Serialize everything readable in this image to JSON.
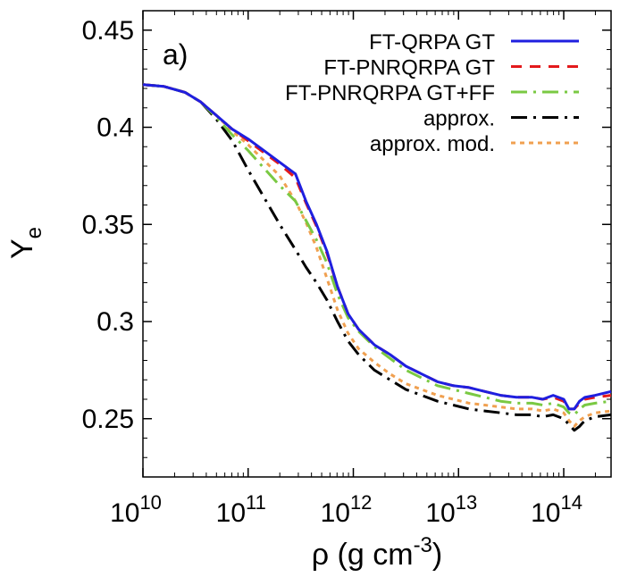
{
  "chart_data": {
    "type": "line",
    "panel_label": "a)",
    "xlabel": {
      "base": "ρ (g cm",
      "sup": "-3",
      "end": ")"
    },
    "ylabel": {
      "base": "Y",
      "sub": "e"
    },
    "xscale": "log",
    "xlim_log10": [
      10,
      14.45
    ],
    "ylim": [
      0.22,
      0.46
    ],
    "yticks": [
      "0.25",
      "0.3",
      "0.35",
      "0.4",
      "0.45"
    ],
    "xticks": [
      {
        "exp": 10,
        "base": "10",
        "sup": "10"
      },
      {
        "exp": 11,
        "base": "10",
        "sup": "11"
      },
      {
        "exp": 12,
        "base": "10",
        "sup": "12"
      },
      {
        "exp": 13,
        "base": "10",
        "sup": "13"
      },
      {
        "exp": 14,
        "base": "10",
        "sup": "14"
      }
    ],
    "legend_position": "top-right",
    "series": [
      {
        "name": "FT-QRPA GT",
        "color": "#1f1fdf",
        "dash": "solid",
        "x": [
          10.0,
          10.2,
          10.4,
          10.55,
          10.7,
          10.85,
          11.0,
          11.15,
          11.3,
          11.45,
          11.55,
          11.65,
          11.75,
          11.85,
          11.95,
          12.05,
          12.2,
          12.35,
          12.5,
          12.65,
          12.8,
          12.95,
          13.1,
          13.25,
          13.4,
          13.55,
          13.7,
          13.8,
          13.9,
          14.0,
          14.05,
          14.1,
          14.15,
          14.2,
          14.3,
          14.45
        ],
        "y": [
          0.422,
          0.421,
          0.418,
          0.413,
          0.406,
          0.399,
          0.394,
          0.388,
          0.382,
          0.376,
          0.362,
          0.35,
          0.336,
          0.318,
          0.304,
          0.296,
          0.288,
          0.283,
          0.277,
          0.273,
          0.269,
          0.267,
          0.266,
          0.264,
          0.262,
          0.261,
          0.261,
          0.26,
          0.262,
          0.26,
          0.255,
          0.255,
          0.259,
          0.261,
          0.262,
          0.264
        ]
      },
      {
        "name": "FT-PNRQRPA GT",
        "color": "#e31a1c",
        "dash": "12,9",
        "x": [
          10.0,
          10.2,
          10.4,
          10.55,
          10.7,
          10.85,
          11.0,
          11.15,
          11.3,
          11.45,
          11.55,
          11.65,
          11.75,
          11.85,
          11.95,
          12.05,
          12.2,
          12.35,
          12.5,
          12.65,
          12.8,
          12.95,
          13.1,
          13.25,
          13.4,
          13.55,
          13.7,
          13.8,
          13.9,
          14.0,
          14.05,
          14.1,
          14.15,
          14.2,
          14.3,
          14.45
        ],
        "y": [
          0.422,
          0.421,
          0.418,
          0.413,
          0.406,
          0.399,
          0.393,
          0.387,
          0.381,
          0.374,
          0.361,
          0.349,
          0.335,
          0.318,
          0.304,
          0.296,
          0.288,
          0.283,
          0.277,
          0.273,
          0.269,
          0.267,
          0.266,
          0.264,
          0.262,
          0.261,
          0.261,
          0.26,
          0.261,
          0.259,
          0.255,
          0.255,
          0.258,
          0.26,
          0.261,
          0.262
        ]
      },
      {
        "name": "FT-PNRQRPA GT+FF",
        "color": "#7ac943",
        "dash": "18,7,3,7",
        "x": [
          10.0,
          10.2,
          10.4,
          10.55,
          10.7,
          10.85,
          11.0,
          11.15,
          11.3,
          11.45,
          11.55,
          11.65,
          11.75,
          11.85,
          11.95,
          12.05,
          12.2,
          12.35,
          12.5,
          12.65,
          12.8,
          12.95,
          13.1,
          13.25,
          13.4,
          13.55,
          13.7,
          13.8,
          13.9,
          14.0,
          14.05,
          14.1,
          14.15,
          14.2,
          14.3,
          14.45
        ],
        "y": [
          0.422,
          0.421,
          0.418,
          0.413,
          0.405,
          0.396,
          0.388,
          0.379,
          0.37,
          0.362,
          0.352,
          0.342,
          0.33,
          0.314,
          0.302,
          0.295,
          0.287,
          0.281,
          0.275,
          0.271,
          0.267,
          0.265,
          0.263,
          0.261,
          0.259,
          0.258,
          0.258,
          0.257,
          0.258,
          0.256,
          0.253,
          0.252,
          0.255,
          0.257,
          0.258,
          0.259
        ]
      },
      {
        "name": "approx.",
        "color": "#000000",
        "dash": "18,7,3,7",
        "x": [
          10.0,
          10.2,
          10.4,
          10.55,
          10.7,
          10.85,
          11.0,
          11.15,
          11.3,
          11.45,
          11.55,
          11.65,
          11.75,
          11.85,
          11.95,
          12.05,
          12.2,
          12.35,
          12.5,
          12.65,
          12.8,
          12.95,
          13.1,
          13.25,
          13.4,
          13.55,
          13.7,
          13.8,
          13.9,
          14.0,
          14.05,
          14.1,
          14.15,
          14.2,
          14.3,
          14.45
        ],
        "y": [
          0.422,
          0.421,
          0.418,
          0.413,
          0.404,
          0.393,
          0.378,
          0.364,
          0.35,
          0.337,
          0.328,
          0.32,
          0.311,
          0.3,
          0.29,
          0.283,
          0.275,
          0.27,
          0.265,
          0.262,
          0.259,
          0.257,
          0.255,
          0.254,
          0.253,
          0.252,
          0.252,
          0.251,
          0.252,
          0.25,
          0.247,
          0.244,
          0.246,
          0.249,
          0.251,
          0.252
        ]
      },
      {
        "name": "approx. mod.",
        "color": "#f0a050",
        "dash": "5,5",
        "x": [
          10.0,
          10.2,
          10.4,
          10.55,
          10.7,
          10.85,
          11.0,
          11.15,
          11.3,
          11.45,
          11.55,
          11.65,
          11.75,
          11.85,
          11.95,
          12.05,
          12.2,
          12.35,
          12.5,
          12.65,
          12.8,
          12.95,
          13.1,
          13.25,
          13.4,
          13.55,
          13.7,
          13.8,
          13.9,
          14.0,
          14.05,
          14.1,
          14.15,
          14.2,
          14.3,
          14.45
        ],
        "y": [
          0.422,
          0.421,
          0.418,
          0.413,
          0.406,
          0.398,
          0.391,
          0.383,
          0.375,
          0.362,
          0.351,
          0.338,
          0.322,
          0.306,
          0.294,
          0.286,
          0.279,
          0.273,
          0.268,
          0.265,
          0.262,
          0.26,
          0.258,
          0.257,
          0.256,
          0.255,
          0.255,
          0.254,
          0.255,
          0.253,
          0.249,
          0.246,
          0.249,
          0.251,
          0.253,
          0.254
        ]
      }
    ]
  }
}
